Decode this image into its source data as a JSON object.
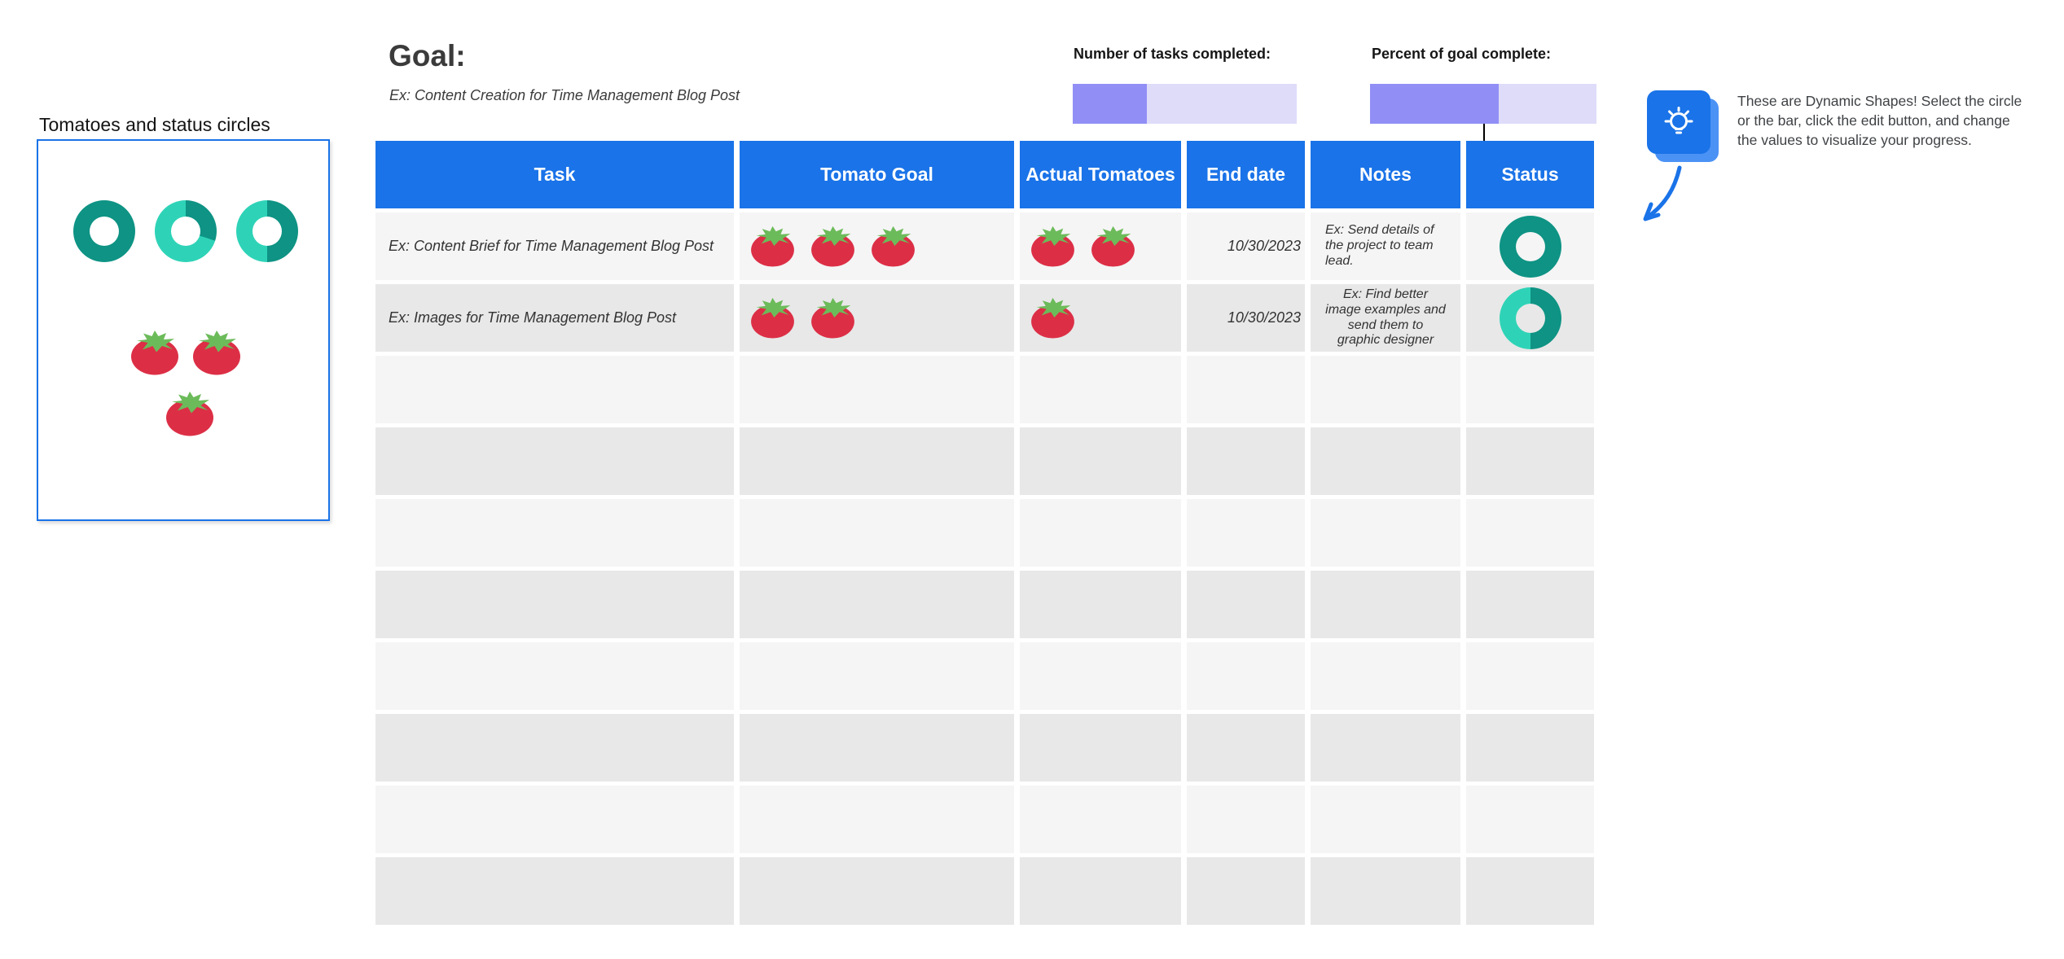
{
  "colors": {
    "header_blue": "#1a73e8",
    "row_light": "#f5f5f5",
    "row_dark": "#e8e8e8",
    "bar_fill": "#918ff5",
    "bar_track": "#dedcf9",
    "tomato_red": "#dc2f46",
    "tomato_green": "#6cbb5a",
    "teal_dark": "#0e9384",
    "teal_light": "#2ed3b7",
    "box_border": "#1a73e8",
    "tip_front": "#1a73e8",
    "tip_back": "#4b92f5"
  },
  "sample_box": {
    "title": "Tomatoes and status circles",
    "status_circles": [
      {
        "percent": 100
      },
      {
        "percent": 30
      },
      {
        "percent": 50
      }
    ],
    "tomato_count": 3
  },
  "goal": {
    "heading": "Goal:",
    "example": "Ex: Content Creation for Time Management Blog Post"
  },
  "metrics": {
    "tasks_completed": {
      "label": "Number of tasks completed:",
      "percent_filled": 33
    },
    "goal_complete": {
      "label": "Percent of goal complete:",
      "percent_filled": 57
    }
  },
  "table": {
    "columns": [
      "Task",
      "Tomato Goal",
      "Actual Tomatoes",
      "End date",
      "Notes",
      "Status"
    ],
    "rows": [
      {
        "task": "Ex: Content Brief for Time Management Blog Post",
        "tomato_goal": 3,
        "actual_tomatoes": 2,
        "end_date": "10/30/2023",
        "notes": "Ex: Send details of the project to team lead.",
        "notes_align": "left",
        "status_percent": 100
      },
      {
        "task": "Ex: Images for Time Management Blog Post",
        "tomato_goal": 2,
        "actual_tomatoes": 1,
        "end_date": "10/30/2023",
        "notes": "Ex: Find better image examples and send them to graphic designer",
        "notes_align": "center",
        "status_percent": 50
      }
    ],
    "empty_row_count": 8
  },
  "tip": {
    "icon": "lightbulb-icon",
    "text": "These are Dynamic Shapes! Select the circle or the bar, click the edit button, and change the values to visualize your progress."
  }
}
